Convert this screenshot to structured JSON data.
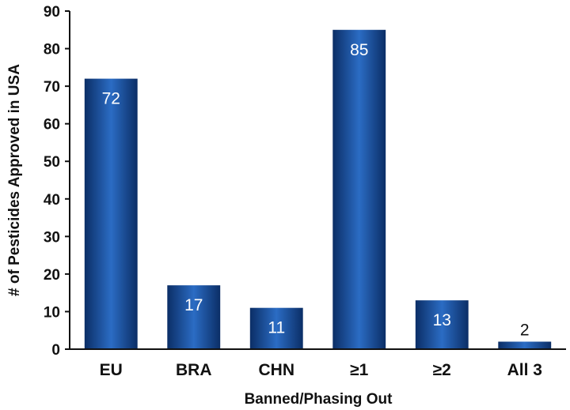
{
  "chart_data": {
    "type": "bar",
    "categories": [
      "EU",
      "BRA",
      "CHN",
      "≥1",
      "≥2",
      "All 3"
    ],
    "values": [
      72,
      17,
      11,
      85,
      13,
      2
    ],
    "data_labels": [
      "72",
      "17",
      "11",
      "85",
      "13",
      "2"
    ],
    "title": "",
    "xlabel": "Banned/Phasing Out",
    "ylabel": "# of Pesticides Approved in USA",
    "ylim": [
      0,
      90
    ],
    "yticks": [
      0,
      10,
      20,
      30,
      40,
      50,
      60,
      70,
      80,
      90
    ],
    "grid": false,
    "legend": "none",
    "colors": {
      "bar_center": "#2b6cc4",
      "bar_edge": "#0b2e66",
      "label_inside": "#ffffff",
      "label_outside": "#111111",
      "axis": "#111111"
    }
  }
}
